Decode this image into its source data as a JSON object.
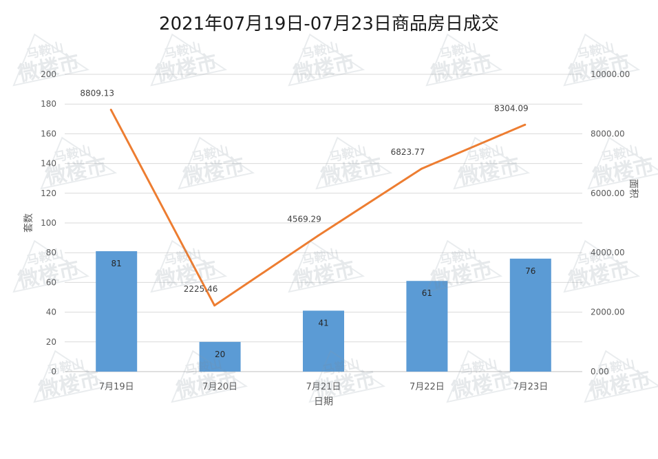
{
  "chart_data": {
    "type": "bar",
    "title": "2021年07月19日-07月23日商品房日成交",
    "xlabel": "日期",
    "ylabel": "套数",
    "y2label": "面积",
    "categories": [
      "7月19日",
      "7月20日",
      "7月21日",
      "7月22日",
      "7月23日"
    ],
    "ylim": [
      0,
      200
    ],
    "y_ticks": [
      "0",
      "20",
      "40",
      "60",
      "80",
      "100",
      "120",
      "140",
      "160",
      "180",
      "200"
    ],
    "y2lim": [
      0,
      10000
    ],
    "y2_ticks": [
      "0.00",
      "2000.00",
      "4000.00",
      "6000.00",
      "8000.00",
      "10000.00"
    ],
    "grid": true,
    "series": [
      {
        "type": "bar",
        "axis": "left",
        "values": [
          81,
          20,
          41,
          61,
          76
        ],
        "labels": [
          "81",
          "20",
          "41",
          "61",
          "76"
        ],
        "color": "#5b9bd5"
      },
      {
        "type": "line",
        "axis": "right",
        "values": [
          8809.13,
          2225.46,
          4569.29,
          6823.77,
          8304.09
        ],
        "labels": [
          "8809.13",
          "2225.46",
          "4569.29",
          "6823.77",
          "8304.09"
        ],
        "color": "#ed7d31"
      }
    ]
  },
  "watermark": {
    "line1": "马鞍山",
    "line2": "微楼市"
  }
}
